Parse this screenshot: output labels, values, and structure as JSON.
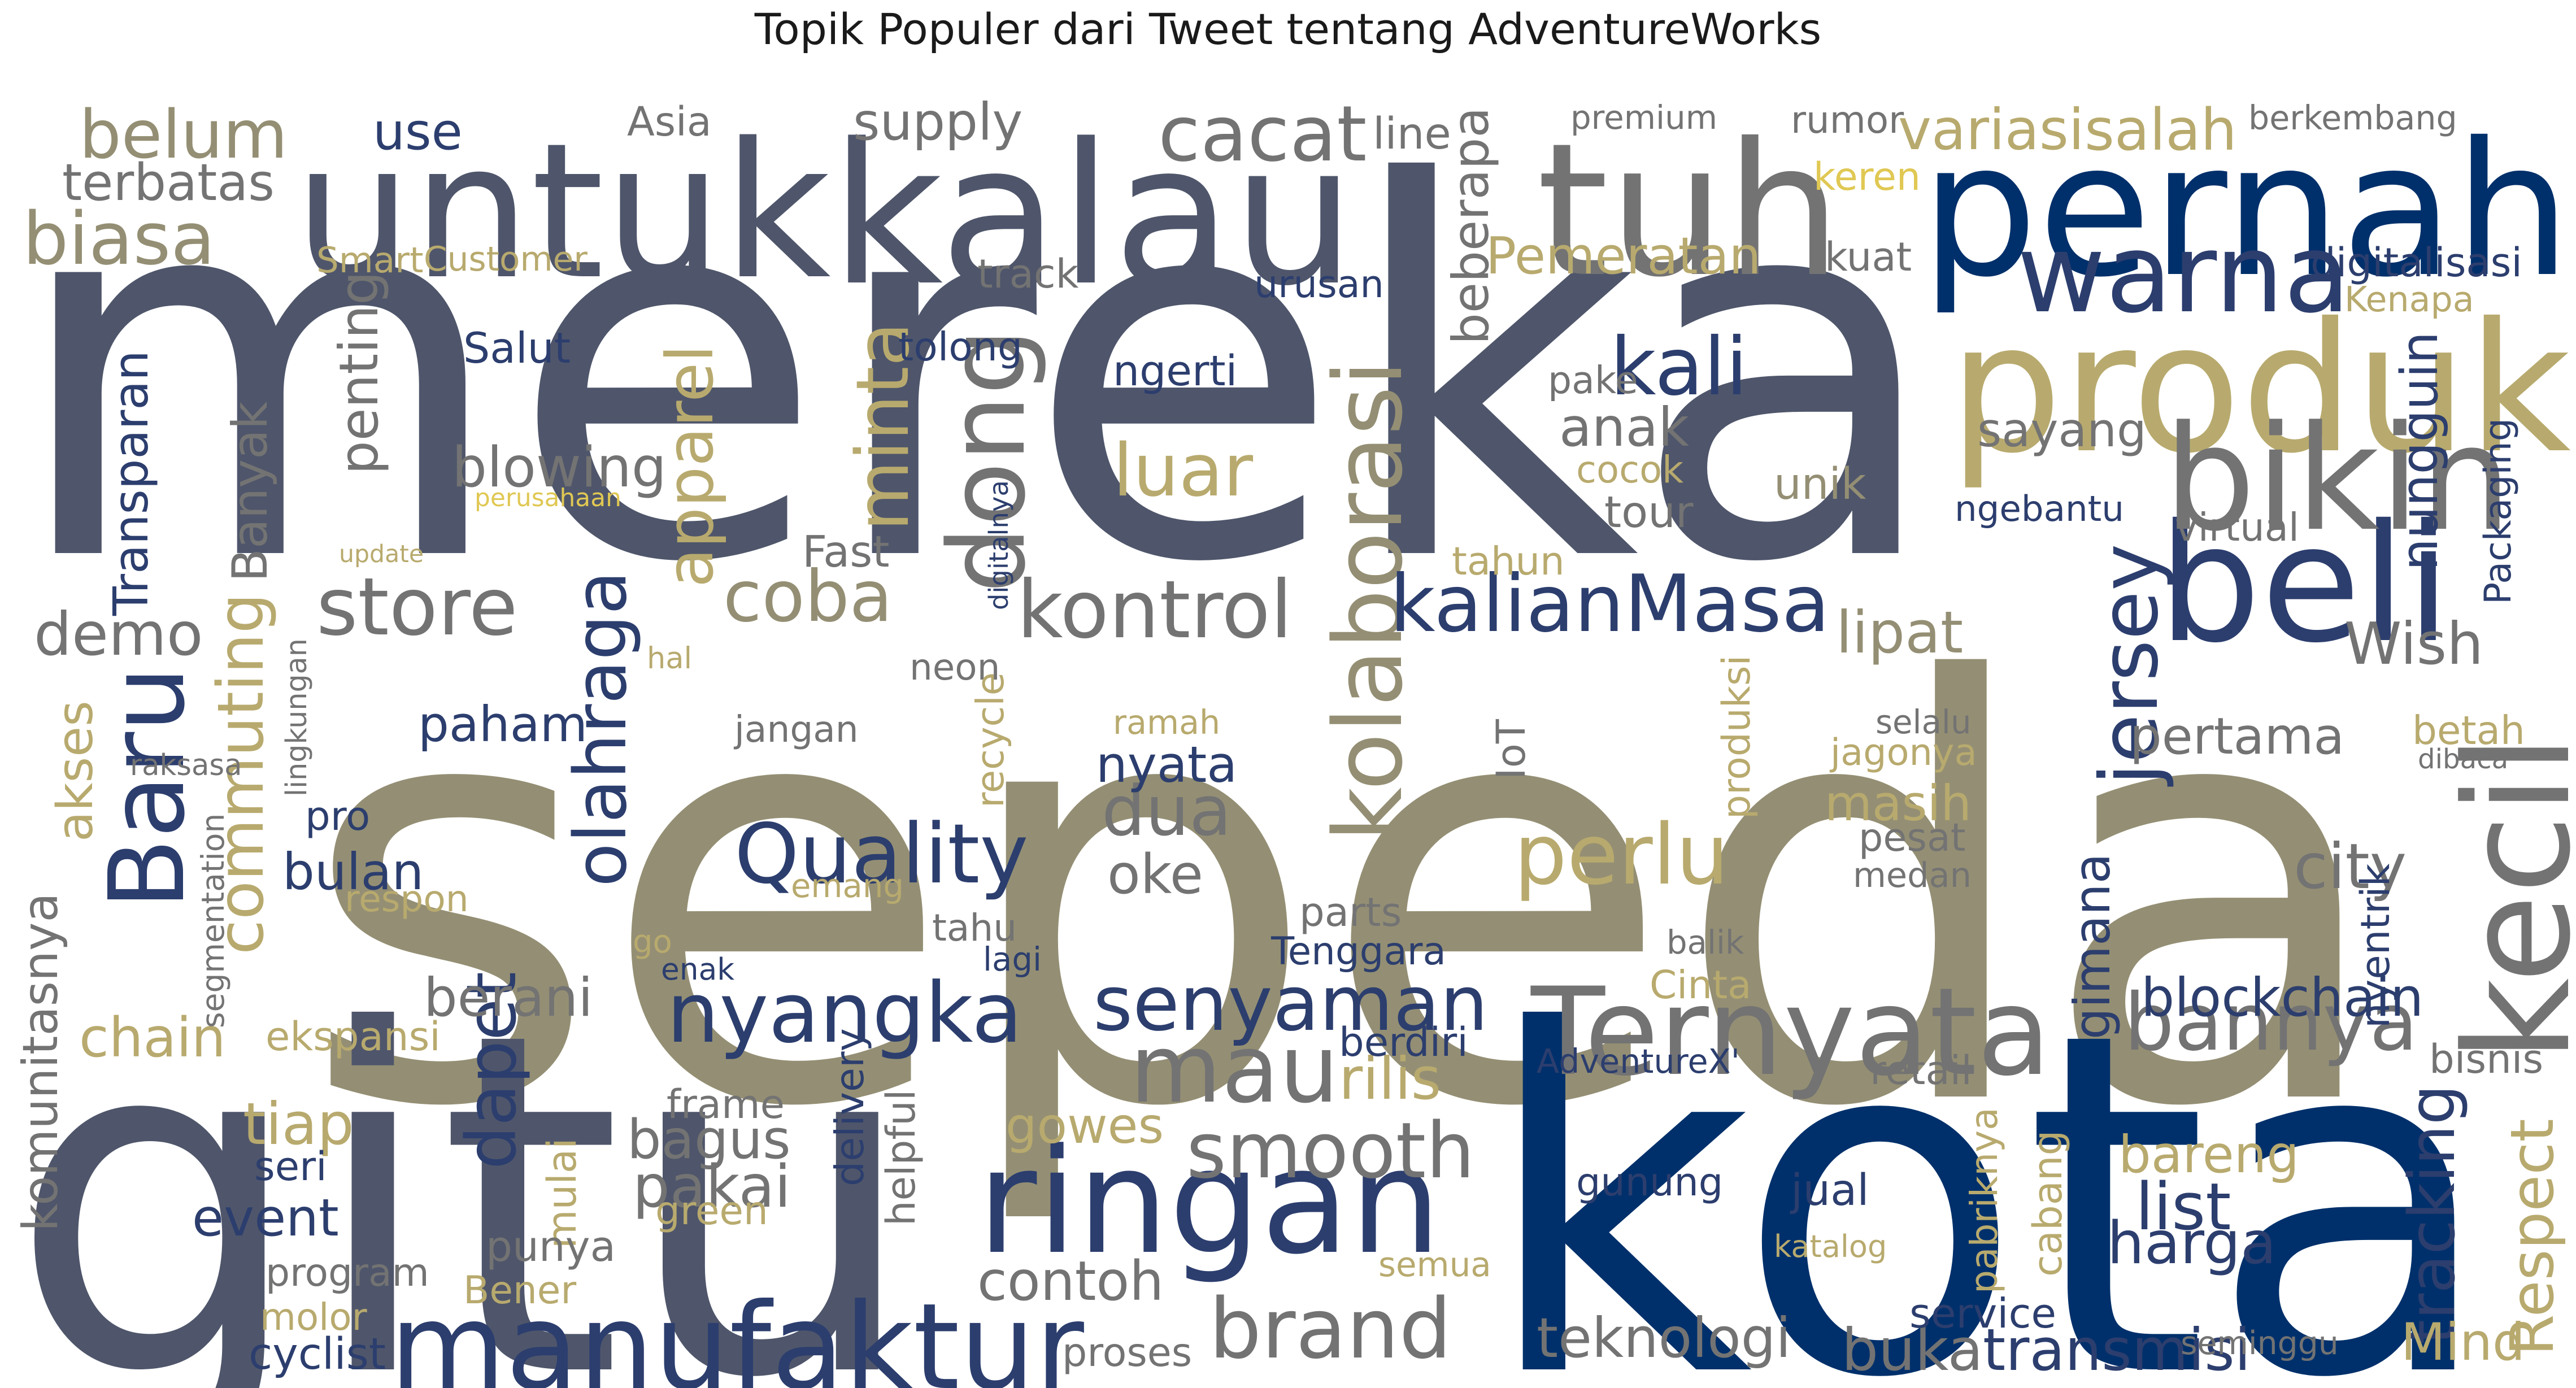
{
  "title": "Topik Populer dari Tweet tentang AdventureWorks",
  "colors": {
    "dark_slate": "#4f566b",
    "khaki_gray": "#948f74",
    "navy": "#00306b",
    "mid_gray": "#737373",
    "gold": "#b8aa6e",
    "blue_slate": "#2c3e6e",
    "yellow": "#e0c853"
  },
  "words": [
    {
      "text": "sepeda"
    },
    {
      "text": "mereka"
    },
    {
      "text": "gitu"
    },
    {
      "text": "kota"
    },
    {
      "text": "untuk"
    },
    {
      "text": "kalau"
    },
    {
      "text": "tuh"
    },
    {
      "text": "pernah"
    },
    {
      "text": "produk"
    },
    {
      "text": "Baru"
    },
    {
      "text": "beli"
    },
    {
      "text": "kecil"
    },
    {
      "text": "ringan"
    },
    {
      "text": "manufaktur"
    },
    {
      "text": "Ternyata"
    },
    {
      "text": "bikin"
    },
    {
      "text": "dong"
    },
    {
      "text": "warna"
    },
    {
      "text": "mau"
    },
    {
      "text": "senyaman"
    },
    {
      "text": "smooth"
    },
    {
      "text": "kolaborasi"
    },
    {
      "text": "nyangka"
    },
    {
      "text": "olahraga"
    },
    {
      "text": "brand"
    },
    {
      "text": "Quality"
    },
    {
      "text": "bannya"
    },
    {
      "text": "perlu"
    },
    {
      "text": "commuting"
    },
    {
      "text": "apparel"
    },
    {
      "text": "kalianMasa"
    },
    {
      "text": "jersey"
    },
    {
      "text": "cacat"
    },
    {
      "text": "store"
    },
    {
      "text": "coba"
    },
    {
      "text": "kontrol"
    },
    {
      "text": "minta"
    },
    {
      "text": "kali"
    },
    {
      "text": "belum"
    },
    {
      "text": "dua"
    },
    {
      "text": "biasa"
    },
    {
      "text": "demo"
    },
    {
      "text": "luar"
    },
    {
      "text": "dapet"
    },
    {
      "text": "teknologi"
    },
    {
      "text": "blockchain"
    },
    {
      "text": "city"
    },
    {
      "text": "pertama"
    },
    {
      "text": "harga"
    },
    {
      "text": "Respect"
    },
    {
      "text": "tracking"
    },
    {
      "text": "bareng"
    },
    {
      "text": "list"
    },
    {
      "text": "Mind"
    },
    {
      "text": "transmisi"
    },
    {
      "text": "buka"
    },
    {
      "text": "contoh"
    },
    {
      "text": "pakai"
    },
    {
      "text": "bagus"
    },
    {
      "text": "event"
    },
    {
      "text": "tiap"
    },
    {
      "text": "berani"
    },
    {
      "text": "bulan"
    },
    {
      "text": "paham"
    },
    {
      "text": "nyata"
    },
    {
      "text": "oke"
    },
    {
      "text": "masih"
    },
    {
      "text": "lipat"
    },
    {
      "text": "sayang"
    },
    {
      "text": "anak"
    },
    {
      "text": "Wish"
    },
    {
      "text": "gimana"
    },
    {
      "text": "rilis"
    },
    {
      "text": "gowes"
    },
    {
      "text": "blowing"
    },
    {
      "text": "Transparan"
    },
    {
      "text": "akses"
    },
    {
      "text": "chain"
    },
    {
      "text": "komunitasnya"
    },
    {
      "text": "Banyak"
    },
    {
      "text": "penting"
    },
    {
      "text": "supply"
    },
    {
      "text": "use"
    },
    {
      "text": "terbatas"
    },
    {
      "text": "variasi"
    },
    {
      "text": "salah"
    },
    {
      "text": "Pemeratan"
    },
    {
      "text": "beberapa"
    },
    {
      "text": "nungguin"
    },
    {
      "text": "Packaging"
    },
    {
      "text": "Asia"
    },
    {
      "text": "line"
    },
    {
      "text": "premium"
    },
    {
      "text": "rumor"
    },
    {
      "text": "berkembang"
    },
    {
      "text": "keren"
    },
    {
      "text": "Smart"
    },
    {
      "text": "Customer"
    },
    {
      "text": "track"
    },
    {
      "text": "urusan"
    },
    {
      "text": "kuat"
    },
    {
      "text": "digitalisasi"
    },
    {
      "text": "Kenapa"
    },
    {
      "text": "Salut"
    },
    {
      "text": "tolong"
    },
    {
      "text": "ngerti"
    },
    {
      "text": "pake"
    },
    {
      "text": "perusahaan"
    },
    {
      "text": "update"
    },
    {
      "text": "Fast"
    },
    {
      "text": "digitalnya"
    },
    {
      "text": "cocok"
    },
    {
      "text": "tour"
    },
    {
      "text": "unik"
    },
    {
      "text": "ngebantu"
    },
    {
      "text": "virtual"
    },
    {
      "text": "tahun"
    },
    {
      "text": "hal"
    },
    {
      "text": "lingkungan"
    },
    {
      "text": "neon"
    },
    {
      "text": "recycle"
    },
    {
      "text": "jangan"
    },
    {
      "text": "ramah"
    },
    {
      "text": "IoT"
    },
    {
      "text": "produksi"
    },
    {
      "text": "selalu"
    },
    {
      "text": "jagonya"
    },
    {
      "text": "dibaca"
    },
    {
      "text": "betah"
    },
    {
      "text": "raksasa"
    },
    {
      "text": "pro"
    },
    {
      "text": "segmentation"
    },
    {
      "text": "respon"
    },
    {
      "text": "emang"
    },
    {
      "text": "pesat"
    },
    {
      "text": "medan"
    },
    {
      "text": "nyentrik"
    },
    {
      "text": "tahu"
    },
    {
      "text": "lagi"
    },
    {
      "text": "enak"
    },
    {
      "text": "go"
    },
    {
      "text": "parts"
    },
    {
      "text": "Tenggara"
    },
    {
      "text": "balik"
    },
    {
      "text": "ekspansi"
    },
    {
      "text": "Cinta"
    },
    {
      "text": "berdiri"
    },
    {
      "text": "AdventureX'"
    },
    {
      "text": "retail"
    },
    {
      "text": "bisnis"
    },
    {
      "text": "frame"
    },
    {
      "text": "delivery"
    },
    {
      "text": "helpful"
    },
    {
      "text": "mulai"
    },
    {
      "text": "seri"
    },
    {
      "text": "gunung"
    },
    {
      "text": "jual"
    },
    {
      "text": "pabriknya"
    },
    {
      "text": "cabang"
    },
    {
      "text": "green"
    },
    {
      "text": "punya"
    },
    {
      "text": "program"
    },
    {
      "text": "Bener"
    },
    {
      "text": "semua"
    },
    {
      "text": "katalog"
    },
    {
      "text": "molor"
    },
    {
      "text": "cyclist"
    },
    {
      "text": "proses"
    },
    {
      "text": "service"
    },
    {
      "text": "seminggu"
    }
  ]
}
